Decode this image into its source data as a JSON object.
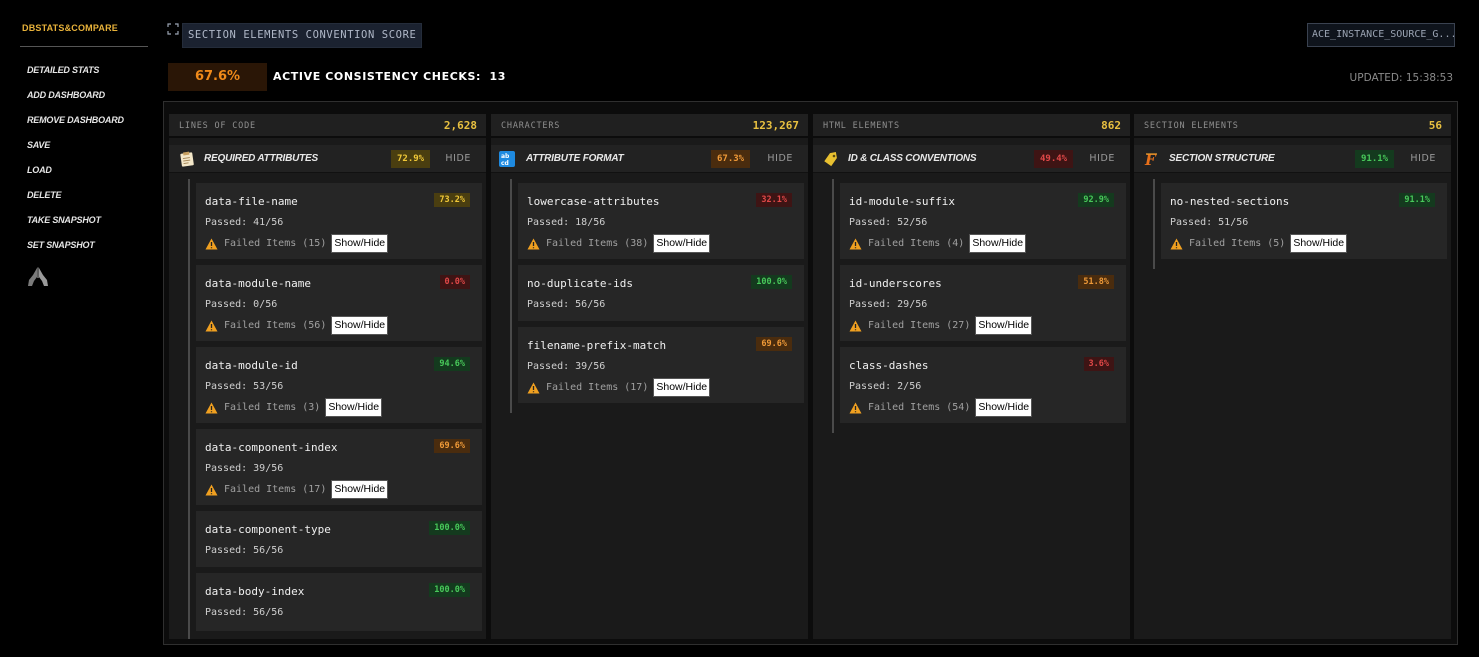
{
  "sidebar": {
    "brand": "DBSTATS&COMPARE",
    "items": [
      {
        "label": "DETAILED STATS",
        "name": "detailed-stats"
      },
      {
        "label": "ADD DASHBOARD",
        "name": "add-dashboard"
      },
      {
        "label": "REMOVE DASHBOARD",
        "name": "remove-dashboard"
      },
      {
        "label": "SAVE",
        "name": "save"
      },
      {
        "label": "LOAD",
        "name": "load"
      },
      {
        "label": "DELETE",
        "name": "delete"
      },
      {
        "label": "TAKE SNAPSHOT",
        "name": "take-snapshot"
      },
      {
        "label": "SET SNAPSHOT",
        "name": "set-snapshot"
      }
    ],
    "bottom_icon": "praying-hands-icon"
  },
  "header": {
    "title": "SECTION ELEMENTS CONVENTION SCORE",
    "source": "ACE_INSTANCE_SOURCE_G...",
    "score": "67.6%",
    "checks_label": "ACTIVE CONSISTENCY CHECKS:",
    "checks_count": "13",
    "updated": "UPDATED: 15:38:53"
  },
  "colors": {
    "accent": "#e8b23a",
    "score_orange": "#f08a1a",
    "stat_value": "#e8c040",
    "pass_green": "#48c85a",
    "fail_red": "#e04848"
  },
  "columns": [
    {
      "stat_label": "LINES OF CODE",
      "stat_value": "2,628",
      "section": {
        "title": "REQUIRED ATTRIBUTES",
        "score": "72.9%",
        "badge": "yellow",
        "icon": "clipboard-icon",
        "hide_label": "HIDE"
      },
      "checks": [
        {
          "name": "data-file-name",
          "score": "73.2%",
          "badge": "yellow",
          "passed": "Passed: 41/56",
          "failed": "Failed Items (15)",
          "toggle": "Show/Hide"
        },
        {
          "name": "data-module-name",
          "score": "0.0%",
          "badge": "red",
          "passed": "Passed: 0/56",
          "failed": "Failed Items (56)",
          "toggle": "Show/Hide"
        },
        {
          "name": "data-module-id",
          "score": "94.6%",
          "badge": "green",
          "passed": "Passed: 53/56",
          "failed": "Failed Items (3)",
          "toggle": "Show/Hide"
        },
        {
          "name": "data-component-index",
          "score": "69.6%",
          "badge": "orange",
          "passed": "Passed: 39/56",
          "failed": "Failed Items (17)",
          "toggle": "Show/Hide"
        },
        {
          "name": "data-component-type",
          "score": "100.0%",
          "badge": "green",
          "passed": "Passed: 56/56"
        },
        {
          "name": "data-body-index",
          "score": "100.0%",
          "badge": "green",
          "passed": "Passed: 56/56"
        }
      ]
    },
    {
      "stat_label": "CHARACTERS",
      "stat_value": "123,267",
      "section": {
        "title": "ATTRIBUTE FORMAT",
        "score": "67.3%",
        "badge": "orange",
        "icon": "abcd-icon",
        "hide_label": "HIDE"
      },
      "checks": [
        {
          "name": "lowercase-attributes",
          "score": "32.1%",
          "badge": "red",
          "passed": "Passed: 18/56",
          "failed": "Failed Items (38)",
          "toggle": "Show/Hide"
        },
        {
          "name": "no-duplicate-ids",
          "score": "100.0%",
          "badge": "green",
          "passed": "Passed: 56/56"
        },
        {
          "name": "filename-prefix-match",
          "score": "69.6%",
          "badge": "orange",
          "passed": "Passed: 39/56",
          "failed": "Failed Items (17)",
          "toggle": "Show/Hide"
        }
      ]
    },
    {
      "stat_label": "HTML ELEMENTS",
      "stat_value": "862",
      "section": {
        "title": "ID & CLASS CONVENTIONS",
        "score": "49.4%",
        "badge": "red",
        "icon": "tag-icon",
        "hide_label": "HIDE"
      },
      "checks": [
        {
          "name": "id-module-suffix",
          "score": "92.9%",
          "badge": "green",
          "passed": "Passed: 52/56",
          "failed": "Failed Items (4)",
          "toggle": "Show/Hide"
        },
        {
          "name": "id-underscores",
          "score": "51.8%",
          "badge": "orange",
          "passed": "Passed: 29/56",
          "failed": "Failed Items (27)",
          "toggle": "Show/Hide"
        },
        {
          "name": "class-dashes",
          "score": "3.6%",
          "badge": "red",
          "passed": "Passed: 2/56",
          "failed": "Failed Items (54)",
          "toggle": "Show/Hide"
        }
      ]
    },
    {
      "stat_label": "SECTION ELEMENTS",
      "stat_value": "56",
      "section": {
        "title": "SECTION STRUCTURE",
        "score": "91.1%",
        "badge": "green",
        "icon": "fancy-f-icon",
        "hide_label": "HIDE"
      },
      "checks": [
        {
          "name": "no-nested-sections",
          "score": "91.1%",
          "badge": "green",
          "passed": "Passed: 51/56",
          "failed": "Failed Items (5)",
          "toggle": "Show/Hide"
        }
      ]
    }
  ]
}
